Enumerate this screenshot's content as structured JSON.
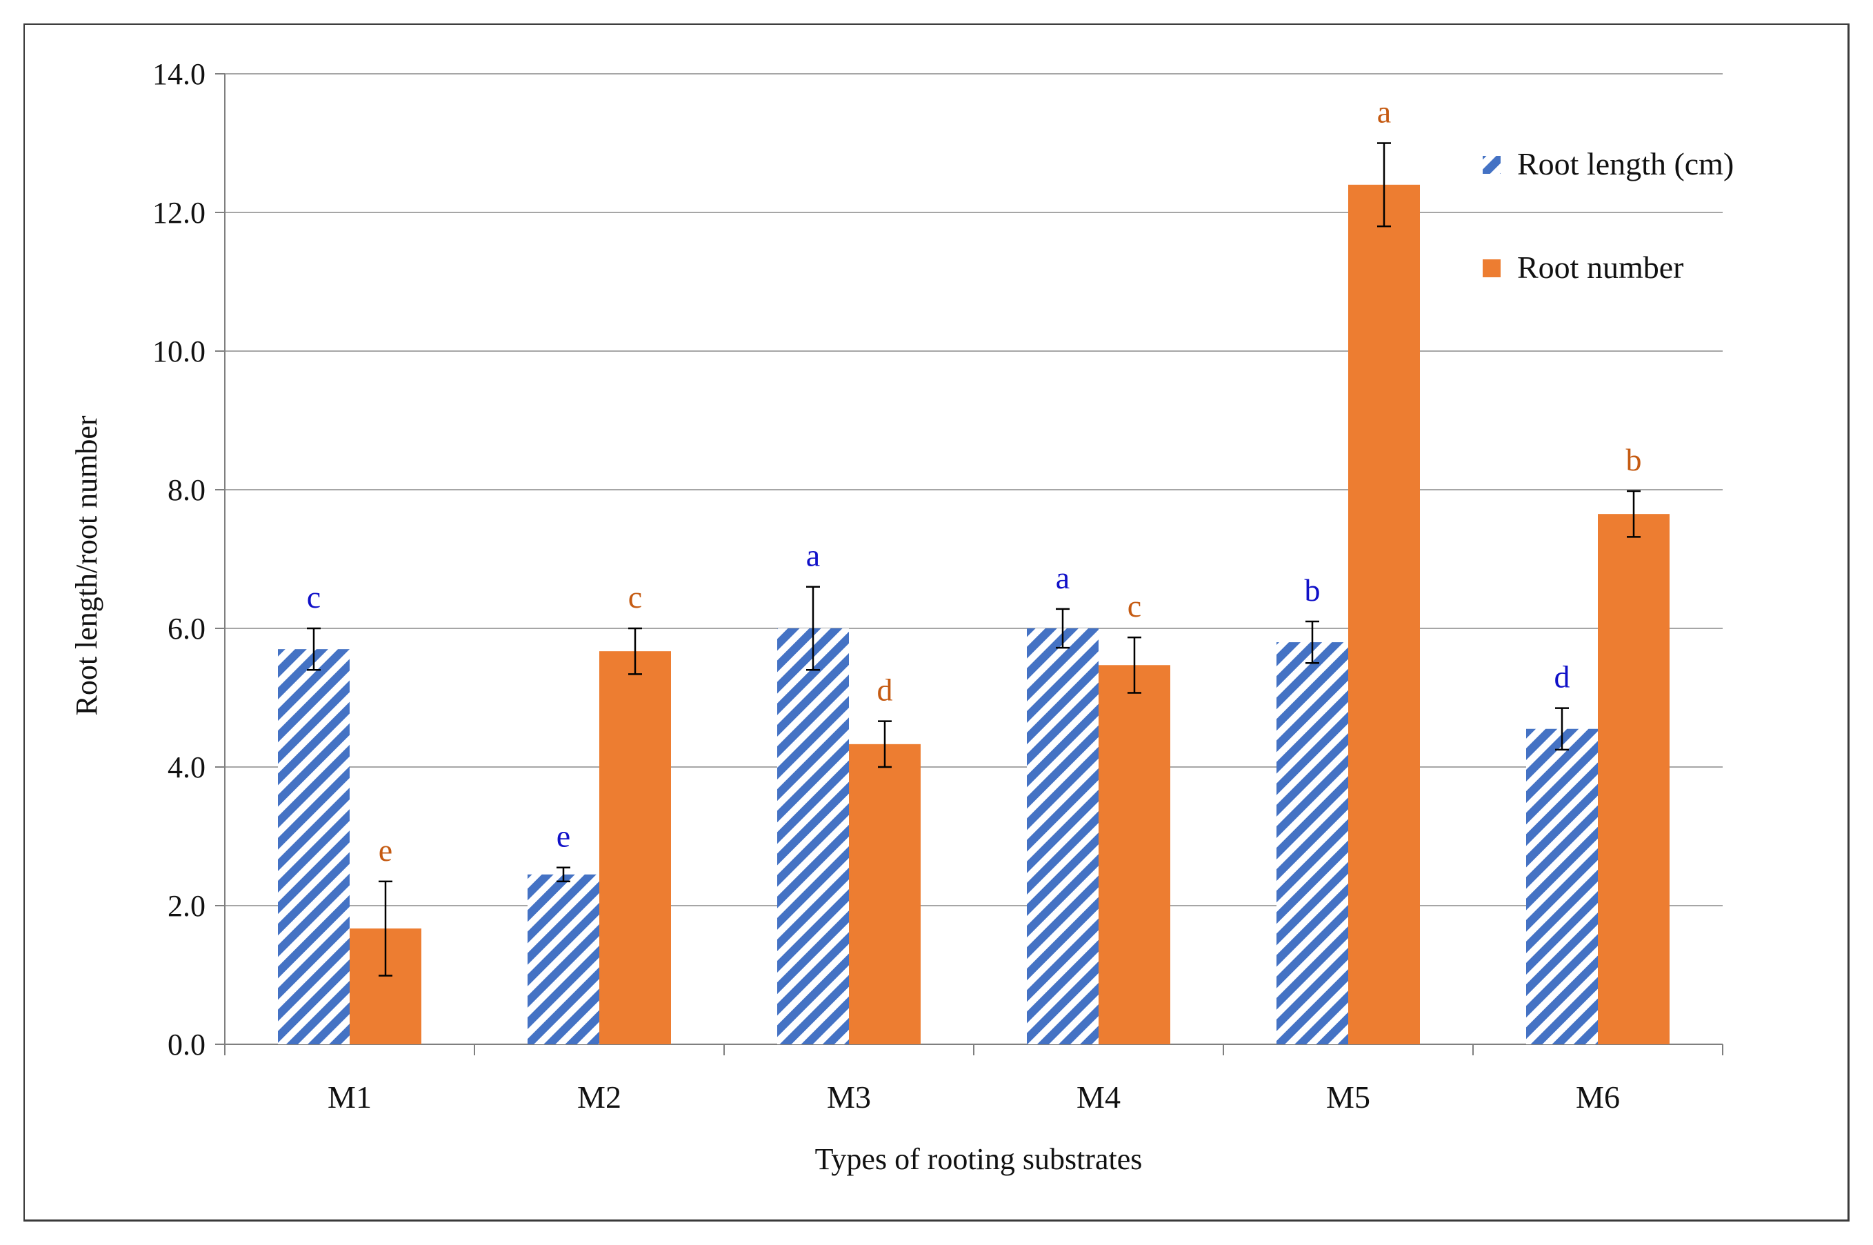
{
  "chart_data": {
    "type": "bar",
    "xlabel": "Types of rooting substrates",
    "ylabel": "Root length/root number",
    "ylim": [
      0,
      14
    ],
    "yticks": [
      "0.0",
      "2.0",
      "4.0",
      "6.0",
      "8.0",
      "10.0",
      "12.0",
      "14.0"
    ],
    "grid": true,
    "legend_position": "top-right",
    "categories": [
      "M1",
      "M2",
      "M3",
      "M4",
      "M5",
      "M6"
    ],
    "series": [
      {
        "name": "Root length (cm)",
        "pattern": "diagonal-stripes",
        "color": "#4472c4",
        "letter_color": "#1010c8",
        "values": [
          5.7,
          2.45,
          6.0,
          6.0,
          5.8,
          4.55
        ],
        "errors": [
          0.3,
          0.1,
          0.6,
          0.28,
          0.3,
          0.3
        ],
        "letters": [
          "c",
          "e",
          "a",
          "a",
          "b",
          "d"
        ]
      },
      {
        "name": "Root number",
        "pattern": "solid",
        "color": "#ed7d31",
        "letter_color": "#c55a11",
        "values": [
          1.67,
          5.67,
          4.33,
          5.47,
          12.4,
          7.65
        ],
        "errors": [
          0.68,
          0.33,
          0.33,
          0.4,
          0.6,
          0.33
        ],
        "letters": [
          "e",
          "c",
          "d",
          "c",
          "a",
          "b"
        ]
      }
    ]
  }
}
